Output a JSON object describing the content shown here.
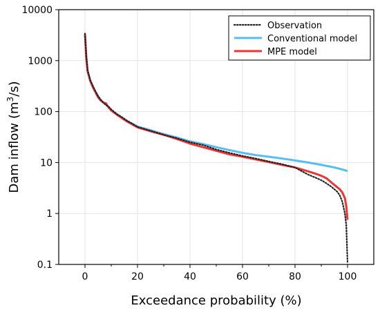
{
  "chart_data": {
    "type": "line",
    "xlabel": "Exceedance probability (%)",
    "ylabel": "Dam inflow (m³/s)",
    "ylabel_parts": {
      "pre": "Dam inflow (m",
      "sup": "3",
      "post": "/s)"
    },
    "y_scale": "log",
    "xlim": [
      -10,
      110
    ],
    "ylim": [
      0.1,
      10000
    ],
    "x_ticks": [
      0,
      20,
      40,
      60,
      80,
      100
    ],
    "y_ticks": [
      0.1,
      1,
      10,
      100,
      1000,
      10000
    ],
    "y_tick_labels": [
      "0.1",
      "1",
      "10",
      "100",
      "1000",
      "10000"
    ],
    "grid": true,
    "legend_position": "top-right",
    "series": [
      {
        "name": "Observation",
        "color": "#222222",
        "style": "dotted",
        "points": [
          [
            0,
            3400
          ],
          [
            0.5,
            1200
          ],
          [
            1,
            650
          ],
          [
            2,
            420
          ],
          [
            3,
            320
          ],
          [
            4,
            250
          ],
          [
            5,
            200
          ],
          [
            6,
            170
          ],
          [
            7,
            150
          ],
          [
            8,
            135
          ],
          [
            9,
            125
          ],
          [
            10,
            110
          ],
          [
            12,
            90
          ],
          [
            14,
            78
          ],
          [
            16,
            66
          ],
          [
            18,
            58
          ],
          [
            20,
            50
          ],
          [
            25,
            42
          ],
          [
            30,
            35
          ],
          [
            35,
            30
          ],
          [
            40,
            25
          ],
          [
            45,
            22
          ],
          [
            50,
            18
          ],
          [
            55,
            15.5
          ],
          [
            60,
            13.5
          ],
          [
            65,
            12
          ],
          [
            70,
            10.5
          ],
          [
            75,
            9.3
          ],
          [
            80,
            8
          ],
          [
            82,
            7
          ],
          [
            85,
            5.8
          ],
          [
            88,
            5
          ],
          [
            90,
            4.5
          ],
          [
            92,
            3.9
          ],
          [
            94,
            3.3
          ],
          [
            96,
            2.7
          ],
          [
            97,
            2.3
          ],
          [
            98,
            1.7
          ],
          [
            99,
            1
          ],
          [
            99.5,
            0.6
          ],
          [
            100,
            0.11
          ]
        ]
      },
      {
        "name": "Conventional model",
        "color": "#56bdf0",
        "style": "solid",
        "points": [
          [
            0,
            3300
          ],
          [
            0.5,
            1150
          ],
          [
            1,
            620
          ],
          [
            2,
            400
          ],
          [
            3,
            310
          ],
          [
            4,
            245
          ],
          [
            5,
            200
          ],
          [
            6,
            170
          ],
          [
            7,
            150
          ],
          [
            8,
            135
          ],
          [
            9,
            122
          ],
          [
            10,
            108
          ],
          [
            12,
            90
          ],
          [
            14,
            77
          ],
          [
            16,
            66
          ],
          [
            18,
            58
          ],
          [
            20,
            51
          ],
          [
            25,
            43
          ],
          [
            30,
            36
          ],
          [
            35,
            31
          ],
          [
            40,
            26
          ],
          [
            45,
            23
          ],
          [
            50,
            20
          ],
          [
            55,
            17.5
          ],
          [
            60,
            15.5
          ],
          [
            65,
            14
          ],
          [
            70,
            13
          ],
          [
            75,
            12
          ],
          [
            80,
            11
          ],
          [
            85,
            10
          ],
          [
            90,
            9
          ],
          [
            95,
            8
          ],
          [
            98,
            7.3
          ],
          [
            100,
            6.8
          ]
        ]
      },
      {
        "name": "MPE model",
        "color": "#ee3333",
        "style": "solid",
        "points": [
          [
            0,
            3300
          ],
          [
            0.5,
            1150
          ],
          [
            1,
            620
          ],
          [
            2,
            400
          ],
          [
            3,
            300
          ],
          [
            4,
            240
          ],
          [
            5,
            190
          ],
          [
            6,
            165
          ],
          [
            7,
            150
          ],
          [
            8,
            145
          ],
          [
            9,
            120
          ],
          [
            10,
            105
          ],
          [
            12,
            88
          ],
          [
            14,
            75
          ],
          [
            16,
            64
          ],
          [
            18,
            56
          ],
          [
            20,
            49
          ],
          [
            25,
            41
          ],
          [
            30,
            35
          ],
          [
            35,
            29
          ],
          [
            40,
            23.5
          ],
          [
            45,
            20
          ],
          [
            50,
            17
          ],
          [
            55,
            14.5
          ],
          [
            60,
            13
          ],
          [
            65,
            11.5
          ],
          [
            70,
            10.2
          ],
          [
            75,
            9
          ],
          [
            80,
            8
          ],
          [
            85,
            6.7
          ],
          [
            88,
            6
          ],
          [
            90,
            5.5
          ],
          [
            92,
            4.9
          ],
          [
            94,
            4
          ],
          [
            96,
            3.3
          ],
          [
            97,
            3
          ],
          [
            98,
            2.6
          ],
          [
            99,
            2
          ],
          [
            99.5,
            1.4
          ],
          [
            100,
            0.75
          ]
        ]
      }
    ]
  }
}
